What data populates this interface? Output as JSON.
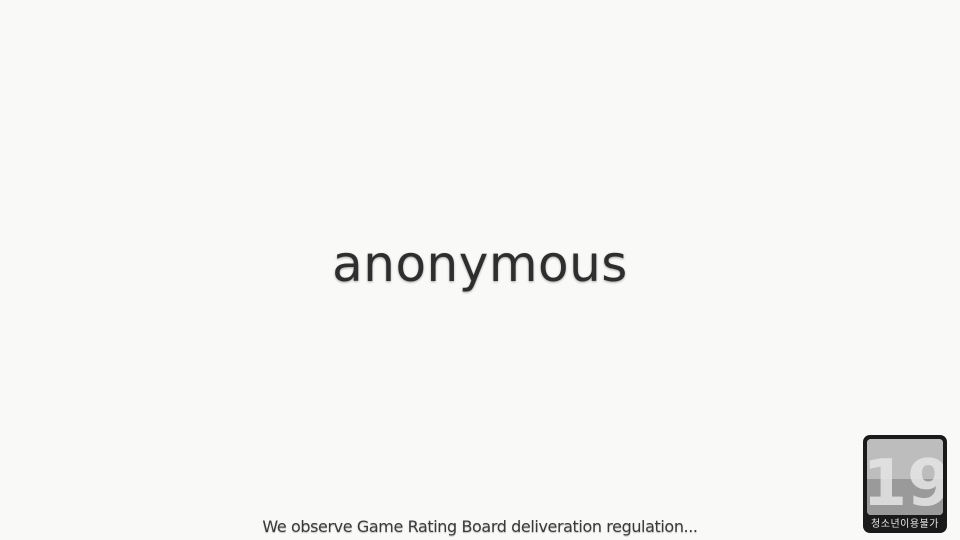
{
  "splash": {
    "title": "anonymous",
    "notice": "We observe Game Rating Board deliveration regulation..."
  },
  "rating_badge": {
    "age": "19",
    "label": "청소년이용불가",
    "icon": "age-rating-19-icon"
  }
}
